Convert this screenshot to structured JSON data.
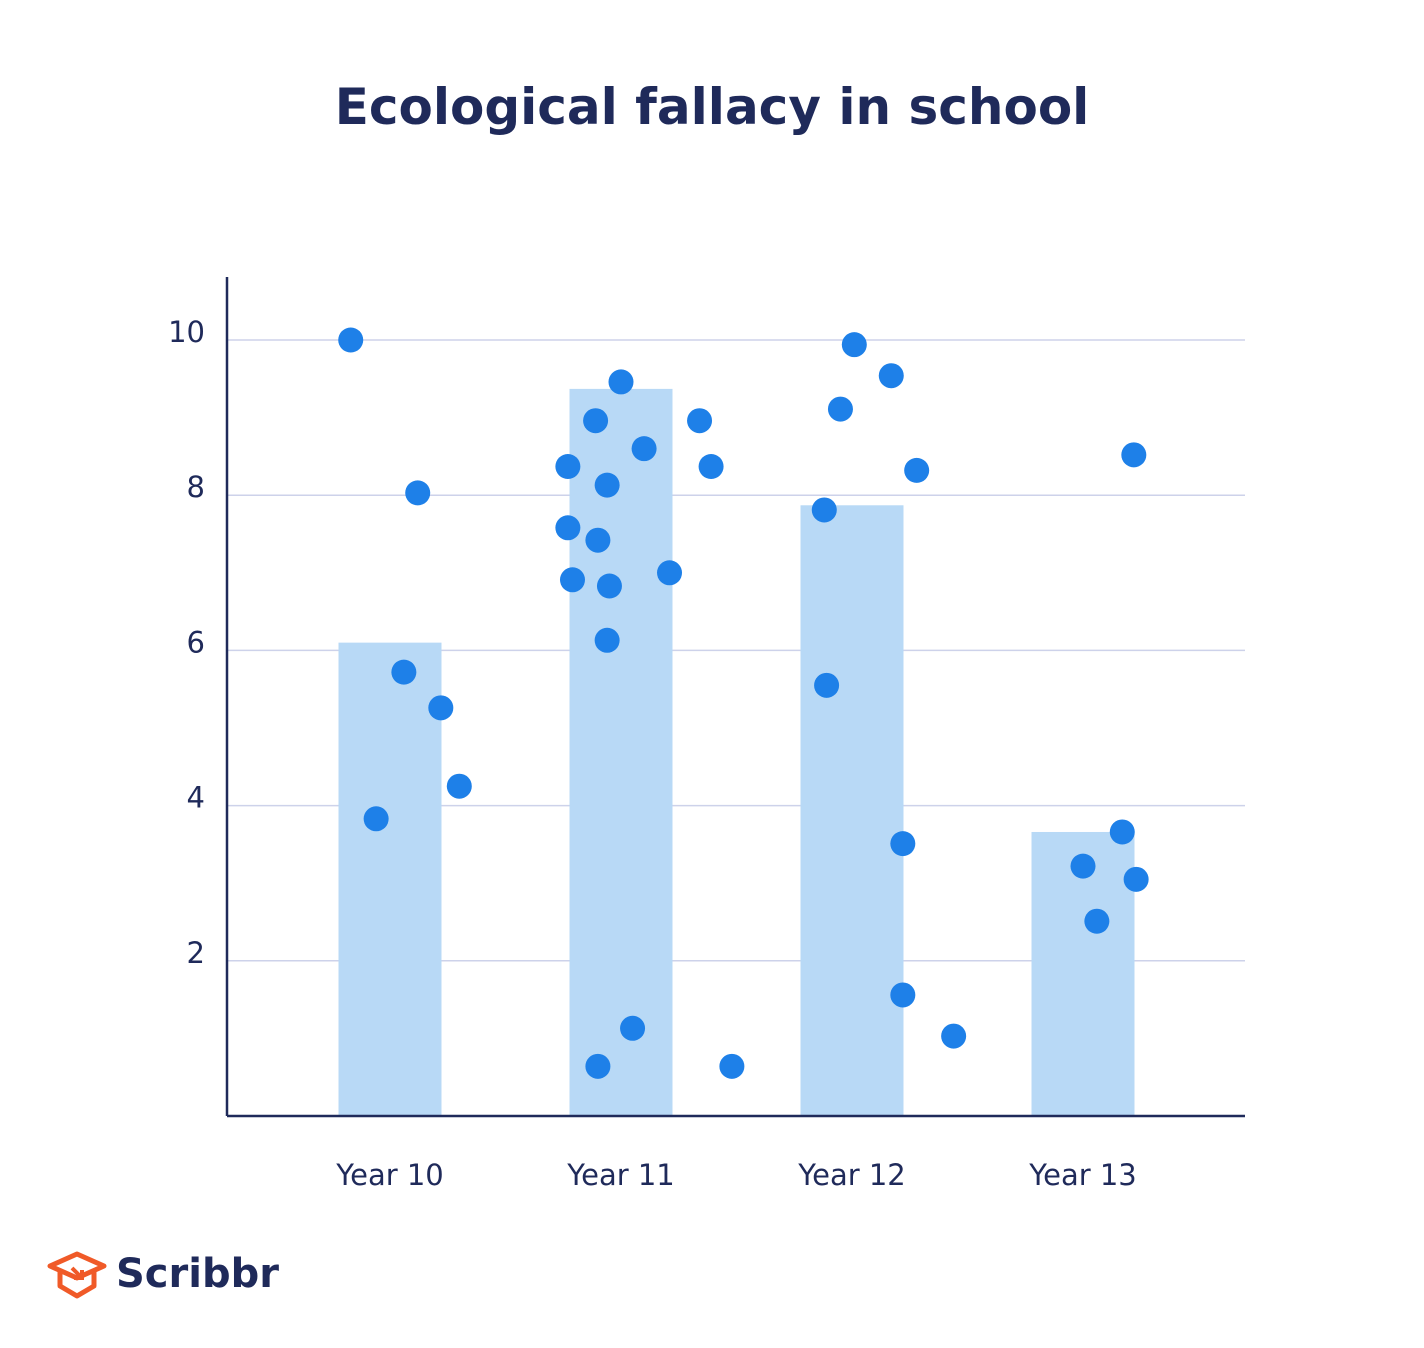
{
  "chart_data": {
    "type": "bar",
    "title": "Ecological fallacy in school",
    "xlabel": "",
    "ylabel": "",
    "categories": [
      "Year 10",
      "Year 11",
      "Year 12",
      "Year 13"
    ],
    "values": [
      6.1,
      9.37,
      7.87,
      3.66
    ],
    "ylim": [
      0,
      10.8
    ],
    "yticks": [
      2,
      4,
      6,
      8,
      10
    ],
    "grid": true,
    "colors": {
      "bar": "#b8d9f6",
      "point": "#1e80e8",
      "axis": "#1f2a5a",
      "grid": "#cdd2ea",
      "text": "#1f2a5a"
    },
    "points": [
      {
        "category": 0,
        "x": -0.17,
        "y": 10.0
      },
      {
        "category": 0,
        "x": 0.12,
        "y": 8.03
      },
      {
        "category": 0,
        "x": 0.06,
        "y": 5.72
      },
      {
        "category": 0,
        "x": 0.22,
        "y": 5.26
      },
      {
        "category": 0,
        "x": 0.3,
        "y": 4.25
      },
      {
        "category": 0,
        "x": -0.06,
        "y": 3.83
      },
      {
        "category": 1,
        "x": 0.0,
        "y": 9.46
      },
      {
        "category": 1,
        "x": -0.11,
        "y": 8.96
      },
      {
        "category": 1,
        "x": 0.1,
        "y": 8.6
      },
      {
        "category": 1,
        "x": 0.34,
        "y": 8.96
      },
      {
        "category": 1,
        "x": -0.23,
        "y": 8.37
      },
      {
        "category": 1,
        "x": -0.06,
        "y": 8.13
      },
      {
        "category": 1,
        "x": 0.39,
        "y": 8.37
      },
      {
        "category": 1,
        "x": -0.23,
        "y": 7.58
      },
      {
        "category": 1,
        "x": -0.1,
        "y": 7.42
      },
      {
        "category": 1,
        "x": -0.21,
        "y": 6.91
      },
      {
        "category": 1,
        "x": -0.05,
        "y": 6.83
      },
      {
        "category": 1,
        "x": 0.21,
        "y": 7.0
      },
      {
        "category": 1,
        "x": -0.06,
        "y": 6.13
      },
      {
        "category": 1,
        "x": 0.05,
        "y": 1.13
      },
      {
        "category": 1,
        "x": -0.1,
        "y": 0.64
      },
      {
        "category": 1,
        "x": 0.48,
        "y": 0.64
      },
      {
        "category": 2,
        "x": 0.01,
        "y": 9.94
      },
      {
        "category": 2,
        "x": 0.17,
        "y": 9.54
      },
      {
        "category": 2,
        "x": -0.05,
        "y": 9.11
      },
      {
        "category": 2,
        "x": 0.28,
        "y": 8.32
      },
      {
        "category": 2,
        "x": -0.12,
        "y": 7.81
      },
      {
        "category": 2,
        "x": -0.11,
        "y": 5.55
      },
      {
        "category": 2,
        "x": 0.22,
        "y": 3.51
      },
      {
        "category": 2,
        "x": 0.22,
        "y": 1.56
      },
      {
        "category": 2,
        "x": 0.44,
        "y": 1.03
      },
      {
        "category": 3,
        "x": 0.22,
        "y": 8.52
      },
      {
        "category": 3,
        "x": 0.17,
        "y": 3.66
      },
      {
        "category": 3,
        "x": 0.0,
        "y": 3.22
      },
      {
        "category": 3,
        "x": 0.23,
        "y": 3.05
      },
      {
        "category": 3,
        "x": 0.06,
        "y": 2.51
      }
    ]
  },
  "brand": {
    "name": "Scribbr",
    "color": "#f05a28"
  }
}
